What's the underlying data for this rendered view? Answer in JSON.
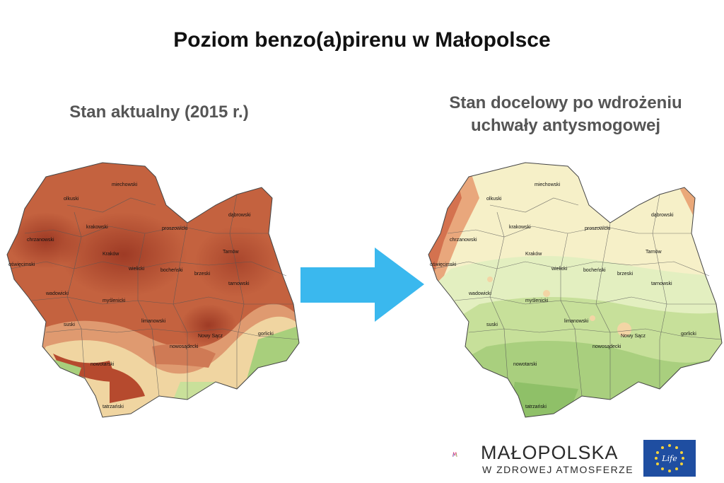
{
  "title": "Poziom benzo(a)pirenu w Małopolsce",
  "left_panel": {
    "heading": "Stan aktualny (2015 r.)",
    "counties": [
      "miechowski",
      "olkuski",
      "dąbrowski",
      "krakowski",
      "proszowicki",
      "chrzanowski",
      "Kraków",
      "Tarnów",
      "oświęcimski",
      "wielicki",
      "bocheński",
      "brzeski",
      "tarnowski",
      "wadowicki",
      "myślenicki",
      "suski",
      "limanowski",
      "Nowy Sącz",
      "nowosądecki",
      "gorlicki",
      "nowotarski",
      "tatrzański"
    ]
  },
  "right_panel": {
    "heading_line1": "Stan docelowy po wdrożeniu",
    "heading_line2": "uchwały antysmogowej",
    "counties": [
      "miechowski",
      "olkuski",
      "dąbrowski",
      "krakowski",
      "proszowicki",
      "chrzanowski",
      "Kraków",
      "Tarnów",
      "oświęcimski",
      "wielicki",
      "bocheński",
      "brzeski",
      "tarnowski",
      "wadowicki",
      "myślenicki",
      "suski",
      "limanowski",
      "Nowy Sącz",
      "nowosądecki",
      "gorlicki",
      "nowotarski",
      "tatrzański"
    ]
  },
  "colors": {
    "arrow": "#3ab8ee",
    "before_high": "#b5492f",
    "before_mid": "#d4865f",
    "before_low": "#f3e3b0",
    "after_green": "#a9cf7e",
    "after_light": "#e3efc0",
    "after_yellow": "#f6f0c8"
  },
  "logo": {
    "name": "MAŁOPOLSKA",
    "tagline": "W ZDROWEJ ATMOSFERZE",
    "eu_label": "Life"
  }
}
